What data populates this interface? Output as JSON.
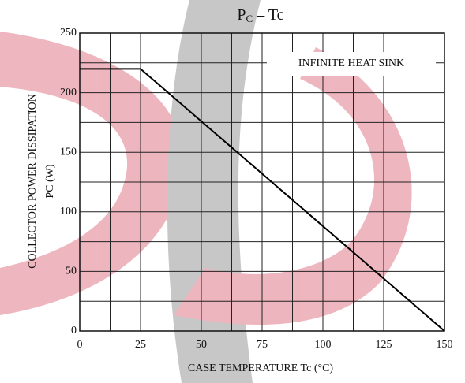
{
  "chart_data": {
    "type": "line",
    "title": {
      "main": "P",
      "sub": "C",
      "rest": " – Tc"
    },
    "ylabel": [
      "COLLECTOR POWER DISSIPATION",
      "PC  (W)"
    ],
    "xlabel": "CASE TEMPERATURE   Tc   (°C)",
    "annotation": "INFINITE HEAT SINK",
    "x": [
      0,
      25,
      150
    ],
    "series": [
      {
        "color": "#000000",
        "values": [
          220,
          220,
          0
        ]
      }
    ],
    "xlim": [
      0,
      150
    ],
    "xticks": [
      0,
      25,
      50,
      75,
      100,
      125,
      150
    ],
    "ylim": [
      0,
      250
    ],
    "yticks": [
      0,
      50,
      100,
      150,
      200,
      250
    ],
    "grid": true
  }
}
